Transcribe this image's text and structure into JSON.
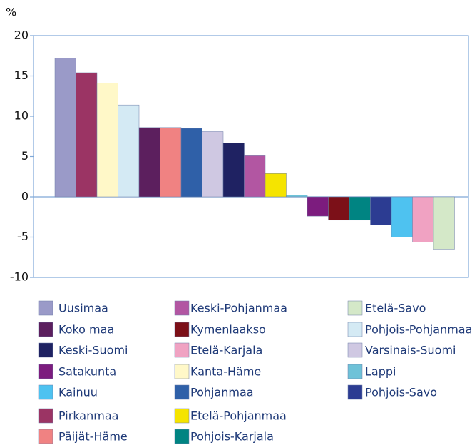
{
  "chart_data": {
    "type": "bar",
    "y_label": "%",
    "categories": [
      "Uusimaa",
      "Pirkanmaa",
      "Kanta-Häme",
      "Pohjois-Pohjanmaa",
      "Koko maa",
      "Päijät-Häme",
      "Pohjanmaa",
      "Varsinais-Suomi",
      "Keski-Suomi",
      "Keski-Pohjanmaa",
      "Etelä-Pohjanmaa",
      "Lappi",
      "Satakunta",
      "Kymenlaakso",
      "Pohjois-Karjala",
      "Pohjois-Savo",
      "Kainuu",
      "Etelä-Karjala",
      "Etelä-Savo"
    ],
    "values": [
      17.2,
      15.4,
      14.1,
      11.4,
      8.6,
      8.6,
      8.5,
      8.1,
      6.7,
      5.1,
      2.9,
      0.2,
      -2.4,
      -2.9,
      -2.9,
      -3.5,
      -5.0,
      -5.6,
      -6.5
    ],
    "colors": [
      "#9a9ac8",
      "#9b3464",
      "#fff8c8",
      "#d4eaf4",
      "#5c1f5e",
      "#f08282",
      "#2f60a8",
      "#cfc8e2",
      "#1f2262",
      "#b256a2",
      "#f5e400",
      "#6ec2d8",
      "#7c1c7e",
      "#7c1018",
      "#008482",
      "#2c3c92",
      "#4ec2f0",
      "#f0a2c2",
      "#d4e8c8"
    ],
    "legend": [
      "Uusimaa",
      "Koko maa",
      "Keski-Suomi",
      "Satakunta",
      "Kainuu",
      "Pirkanmaa",
      "Päijät-Häme",
      "Keski-Pohjanmaa",
      "Kymenlaakso",
      "Etelä-Karjala",
      "Kanta-Häme",
      "Pohjanmaa",
      "Etelä-Pohjanmaa",
      "Pohjois-Karjala",
      "Etelä-Savo",
      "Pohjois-Pohjanmaa",
      "Varsinais-Suomi",
      "Lappi",
      "Pohjois-Savo"
    ],
    "ylim": [
      -10,
      20
    ],
    "yticks": [
      -10,
      -5,
      0,
      5,
      10,
      15,
      20
    ],
    "grid": false
  }
}
